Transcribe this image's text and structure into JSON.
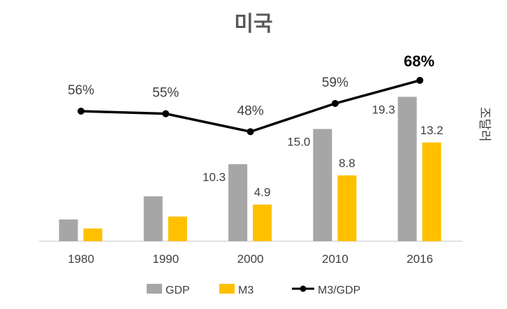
{
  "chart_data": {
    "type": "bar",
    "title": "미국",
    "ylabel": "조달러",
    "categories": [
      "1980",
      "1990",
      "2000",
      "2010",
      "2016"
    ],
    "series": [
      {
        "name": "GDP",
        "kind": "bar",
        "color": "#A6A6A6",
        "values": [
          2.9,
          6.0,
          10.3,
          15.0,
          19.3
        ],
        "labels": [
          "",
          "",
          "10.3",
          "15.0",
          "19.3"
        ]
      },
      {
        "name": "M3",
        "kind": "bar",
        "color": "#FFC000",
        "values": [
          1.7,
          3.3,
          4.9,
          8.8,
          13.2
        ],
        "labels": [
          "",
          "",
          "4.9",
          "8.8",
          "13.2"
        ]
      },
      {
        "name": "M3/GDP",
        "kind": "line",
        "color": "#000000",
        "values": [
          56,
          55,
          48,
          59,
          68
        ],
        "labels": [
          "56%",
          "55%",
          "48%",
          "59%",
          "68%"
        ]
      }
    ],
    "grid": false,
    "legend": "bottom"
  }
}
